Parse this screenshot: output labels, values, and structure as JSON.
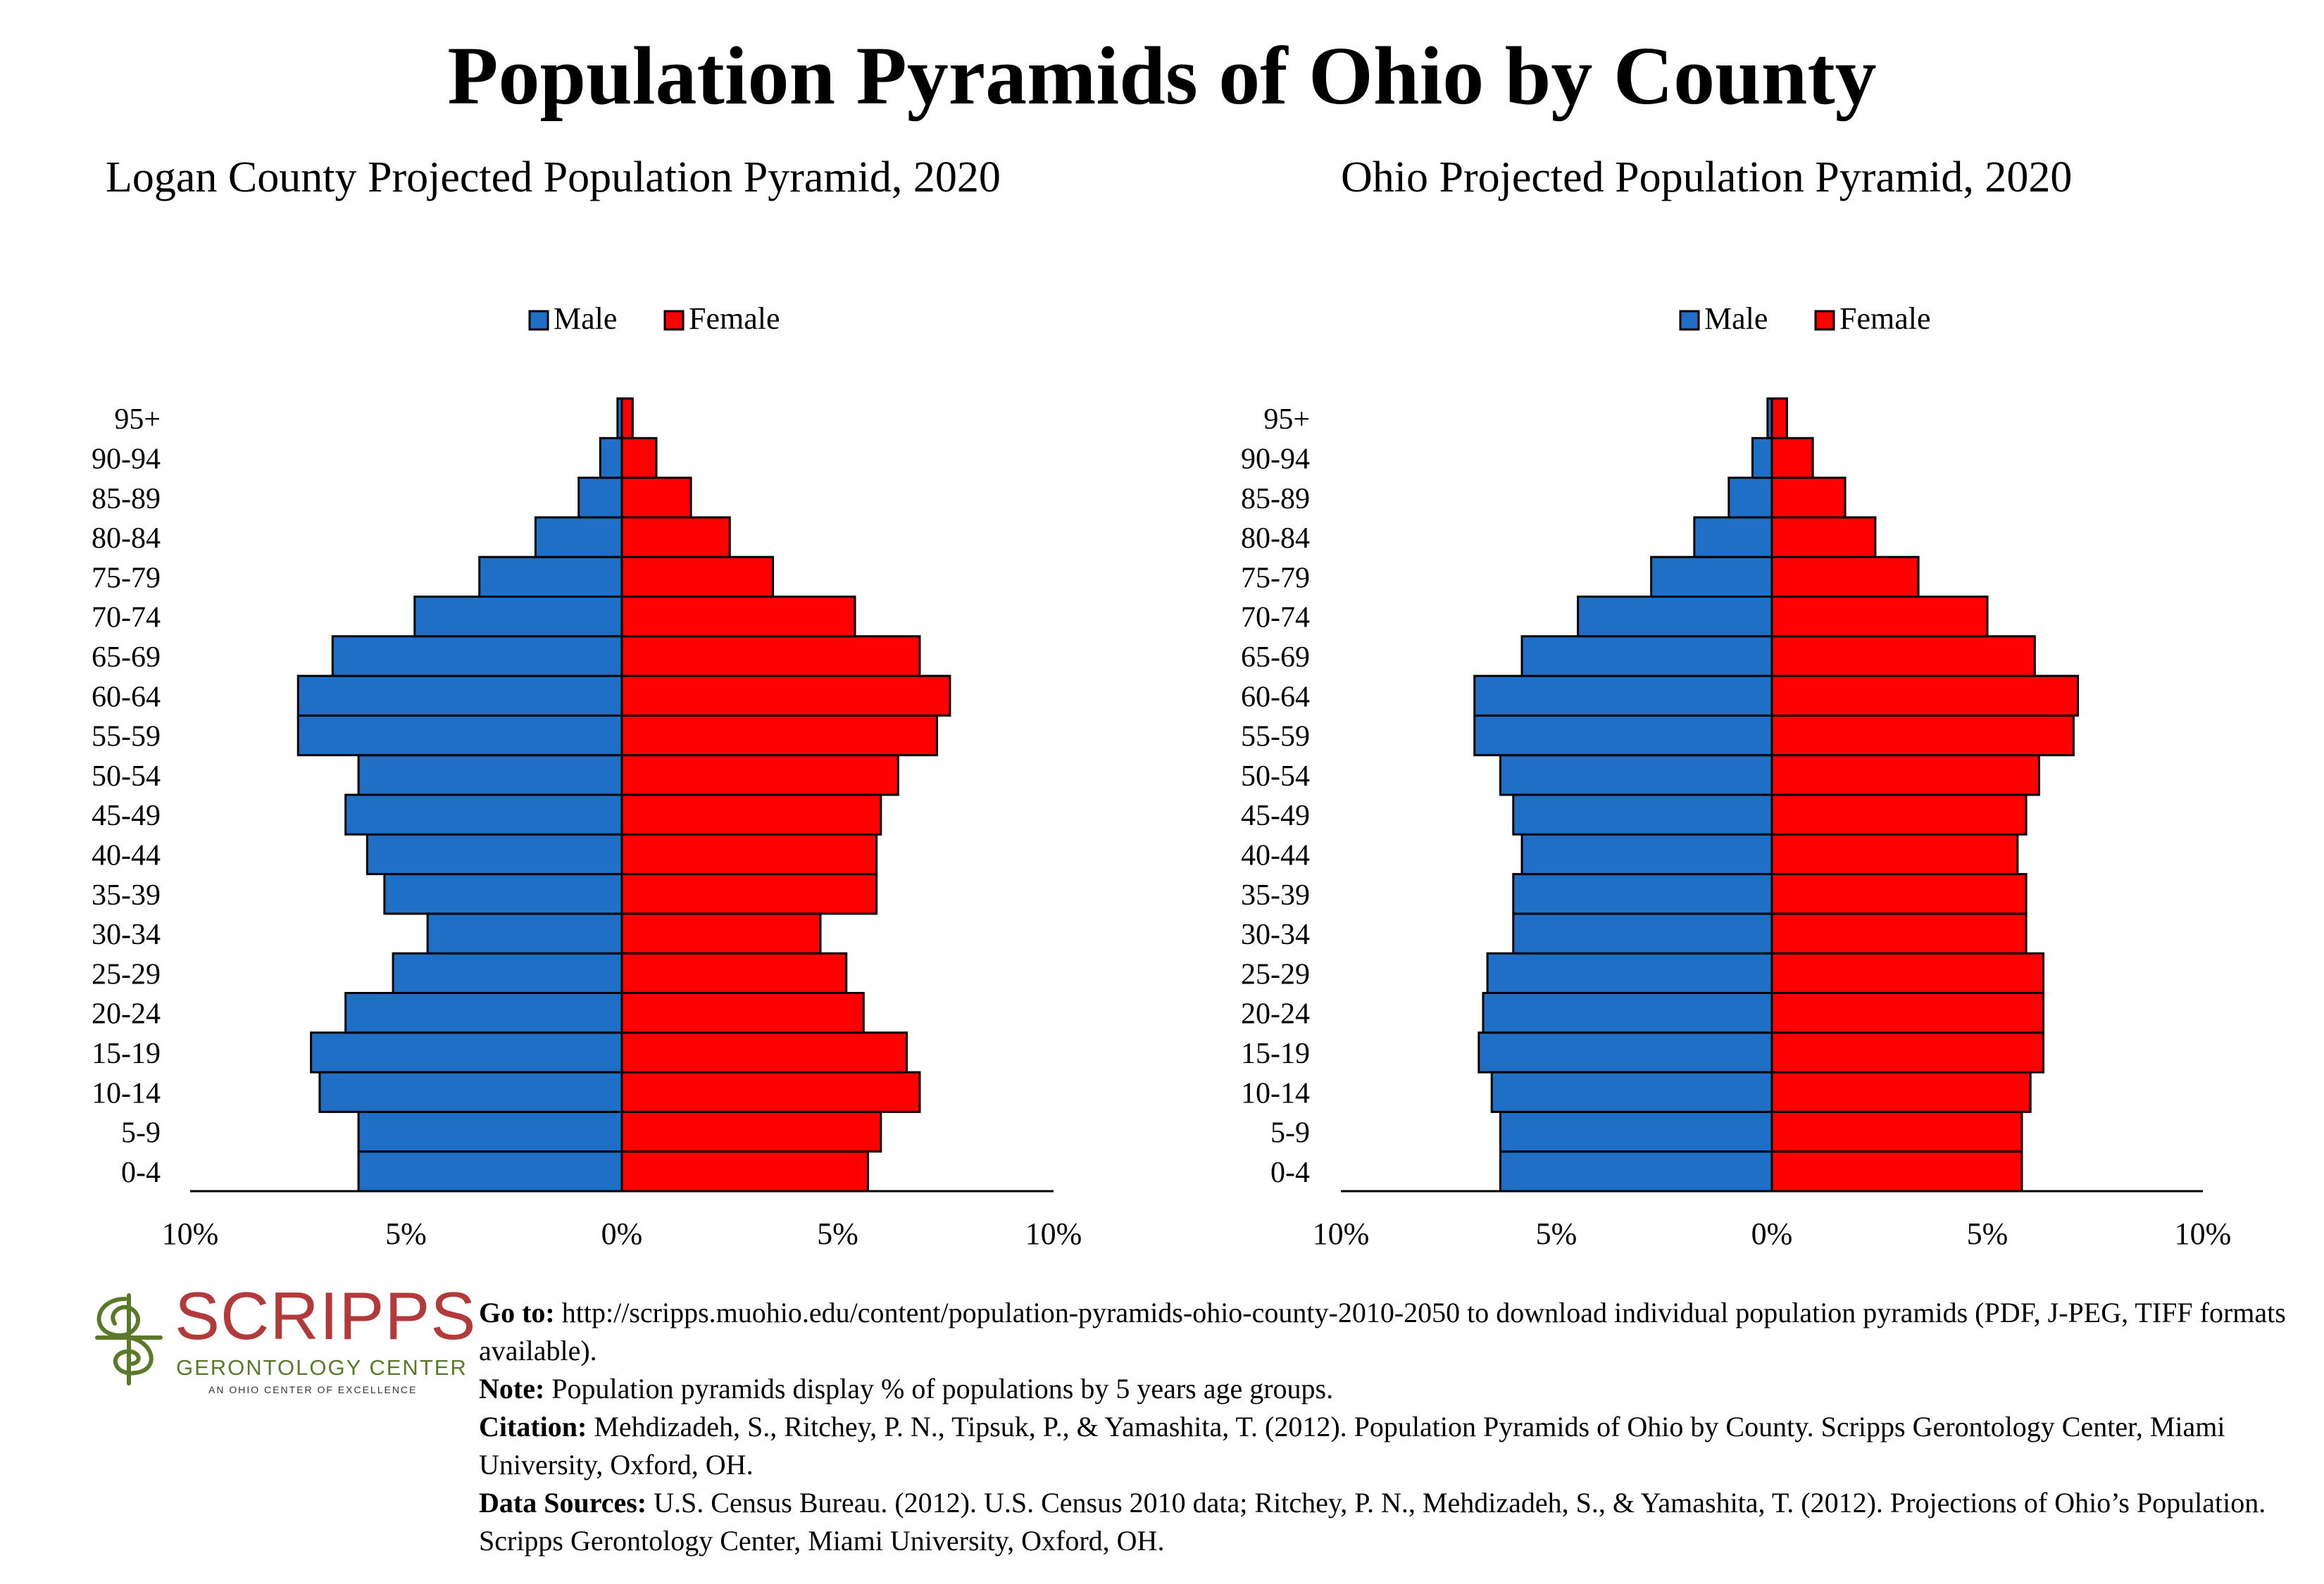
{
  "title": "Population Pyramids of Ohio by County",
  "charts_meta": {
    "tick_labels": [
      "10%",
      "5%",
      "0%",
      "5%",
      "10%"
    ],
    "colors": {
      "male": "#1f6fc6",
      "female": "#ff0000",
      "outline": "#000000"
    }
  },
  "chart_data": [
    {
      "type": "bar",
      "title": "Logan County Projected Population Pyramid, 2020",
      "categories": [
        "0-4",
        "5-9",
        "10-14",
        "15-19",
        "20-24",
        "25-29",
        "30-34",
        "35-39",
        "40-44",
        "45-49",
        "50-54",
        "55-59",
        "60-64",
        "65-69",
        "70-74",
        "75-79",
        "80-84",
        "85-89",
        "90-94",
        "95+"
      ],
      "series": [
        {
          "name": "Male",
          "values": [
            6.1,
            6.1,
            7.0,
            7.2,
            6.4,
            5.3,
            4.5,
            5.5,
            5.9,
            6.4,
            6.1,
            7.5,
            7.5,
            6.7,
            4.8,
            3.3,
            2.0,
            1.0,
            0.5,
            0.1
          ]
        },
        {
          "name": "Female",
          "values": [
            5.7,
            6.0,
            6.9,
            6.6,
            5.6,
            5.2,
            4.6,
            5.9,
            5.9,
            6.0,
            6.4,
            7.3,
            7.6,
            6.9,
            5.4,
            3.5,
            2.5,
            1.6,
            0.8,
            0.25
          ]
        }
      ],
      "xlim": [
        -10,
        10
      ],
      "legend": "top-center"
    },
    {
      "type": "bar",
      "title": "Ohio Projected Population Pyramid, 2020",
      "categories": [
        "0-4",
        "5-9",
        "10-14",
        "15-19",
        "20-24",
        "25-29",
        "30-34",
        "35-39",
        "40-44",
        "45-49",
        "50-54",
        "55-59",
        "60-64",
        "65-69",
        "70-74",
        "75-79",
        "80-84",
        "85-89",
        "90-94",
        "95+"
      ],
      "series": [
        {
          "name": "Male",
          "values": [
            6.3,
            6.3,
            6.5,
            6.8,
            6.7,
            6.6,
            6.0,
            6.0,
            5.8,
            6.0,
            6.3,
            6.9,
            6.9,
            5.8,
            4.5,
            2.8,
            1.8,
            1.0,
            0.45,
            0.1
          ]
        },
        {
          "name": "Female",
          "values": [
            5.8,
            5.8,
            6.0,
            6.3,
            6.3,
            6.3,
            5.9,
            5.9,
            5.7,
            5.9,
            6.2,
            7.0,
            7.1,
            6.1,
            5.0,
            3.4,
            2.4,
            1.7,
            0.95,
            0.35
          ]
        }
      ],
      "xlim": [
        -10,
        10
      ],
      "legend": "top-center"
    }
  ],
  "logo": {
    "word": "SCRIPPS",
    "sub": "GERONTOLOGY CENTER",
    "tag": "AN OHIO CENTER OF EXCELLENCE",
    "icon": "swirl-icon"
  },
  "notes": {
    "goto_label": "Go to:",
    "goto_text": " http://scripps.muohio.edu/content/population-pyramids-ohio-county-2010-2050 to download individual population pyramids (PDF, J-PEG, TIFF formats available).",
    "note_label": "Note:",
    "note_text": " Population pyramids display % of populations by 5 years age groups.",
    "citation_label": "Citation:",
    "citation_text": " Mehdizadeh, S., Ritchey, P. N., Tipsuk, P., & Yamashita, T. (2012). Population Pyramids of Ohio by County. Scripps Gerontology Center, Miami University, Oxford, OH.",
    "sources_label": "Data Sources:",
    "sources_text": " U.S. Census Bureau. (2012). U.S. Census 2010 data; Ritchey, P. N., Mehdizadeh, S., & Yamashita, T. (2012). Projections of Ohio’s Population. Scripps Gerontology Center, Miami University, Oxford, OH."
  }
}
